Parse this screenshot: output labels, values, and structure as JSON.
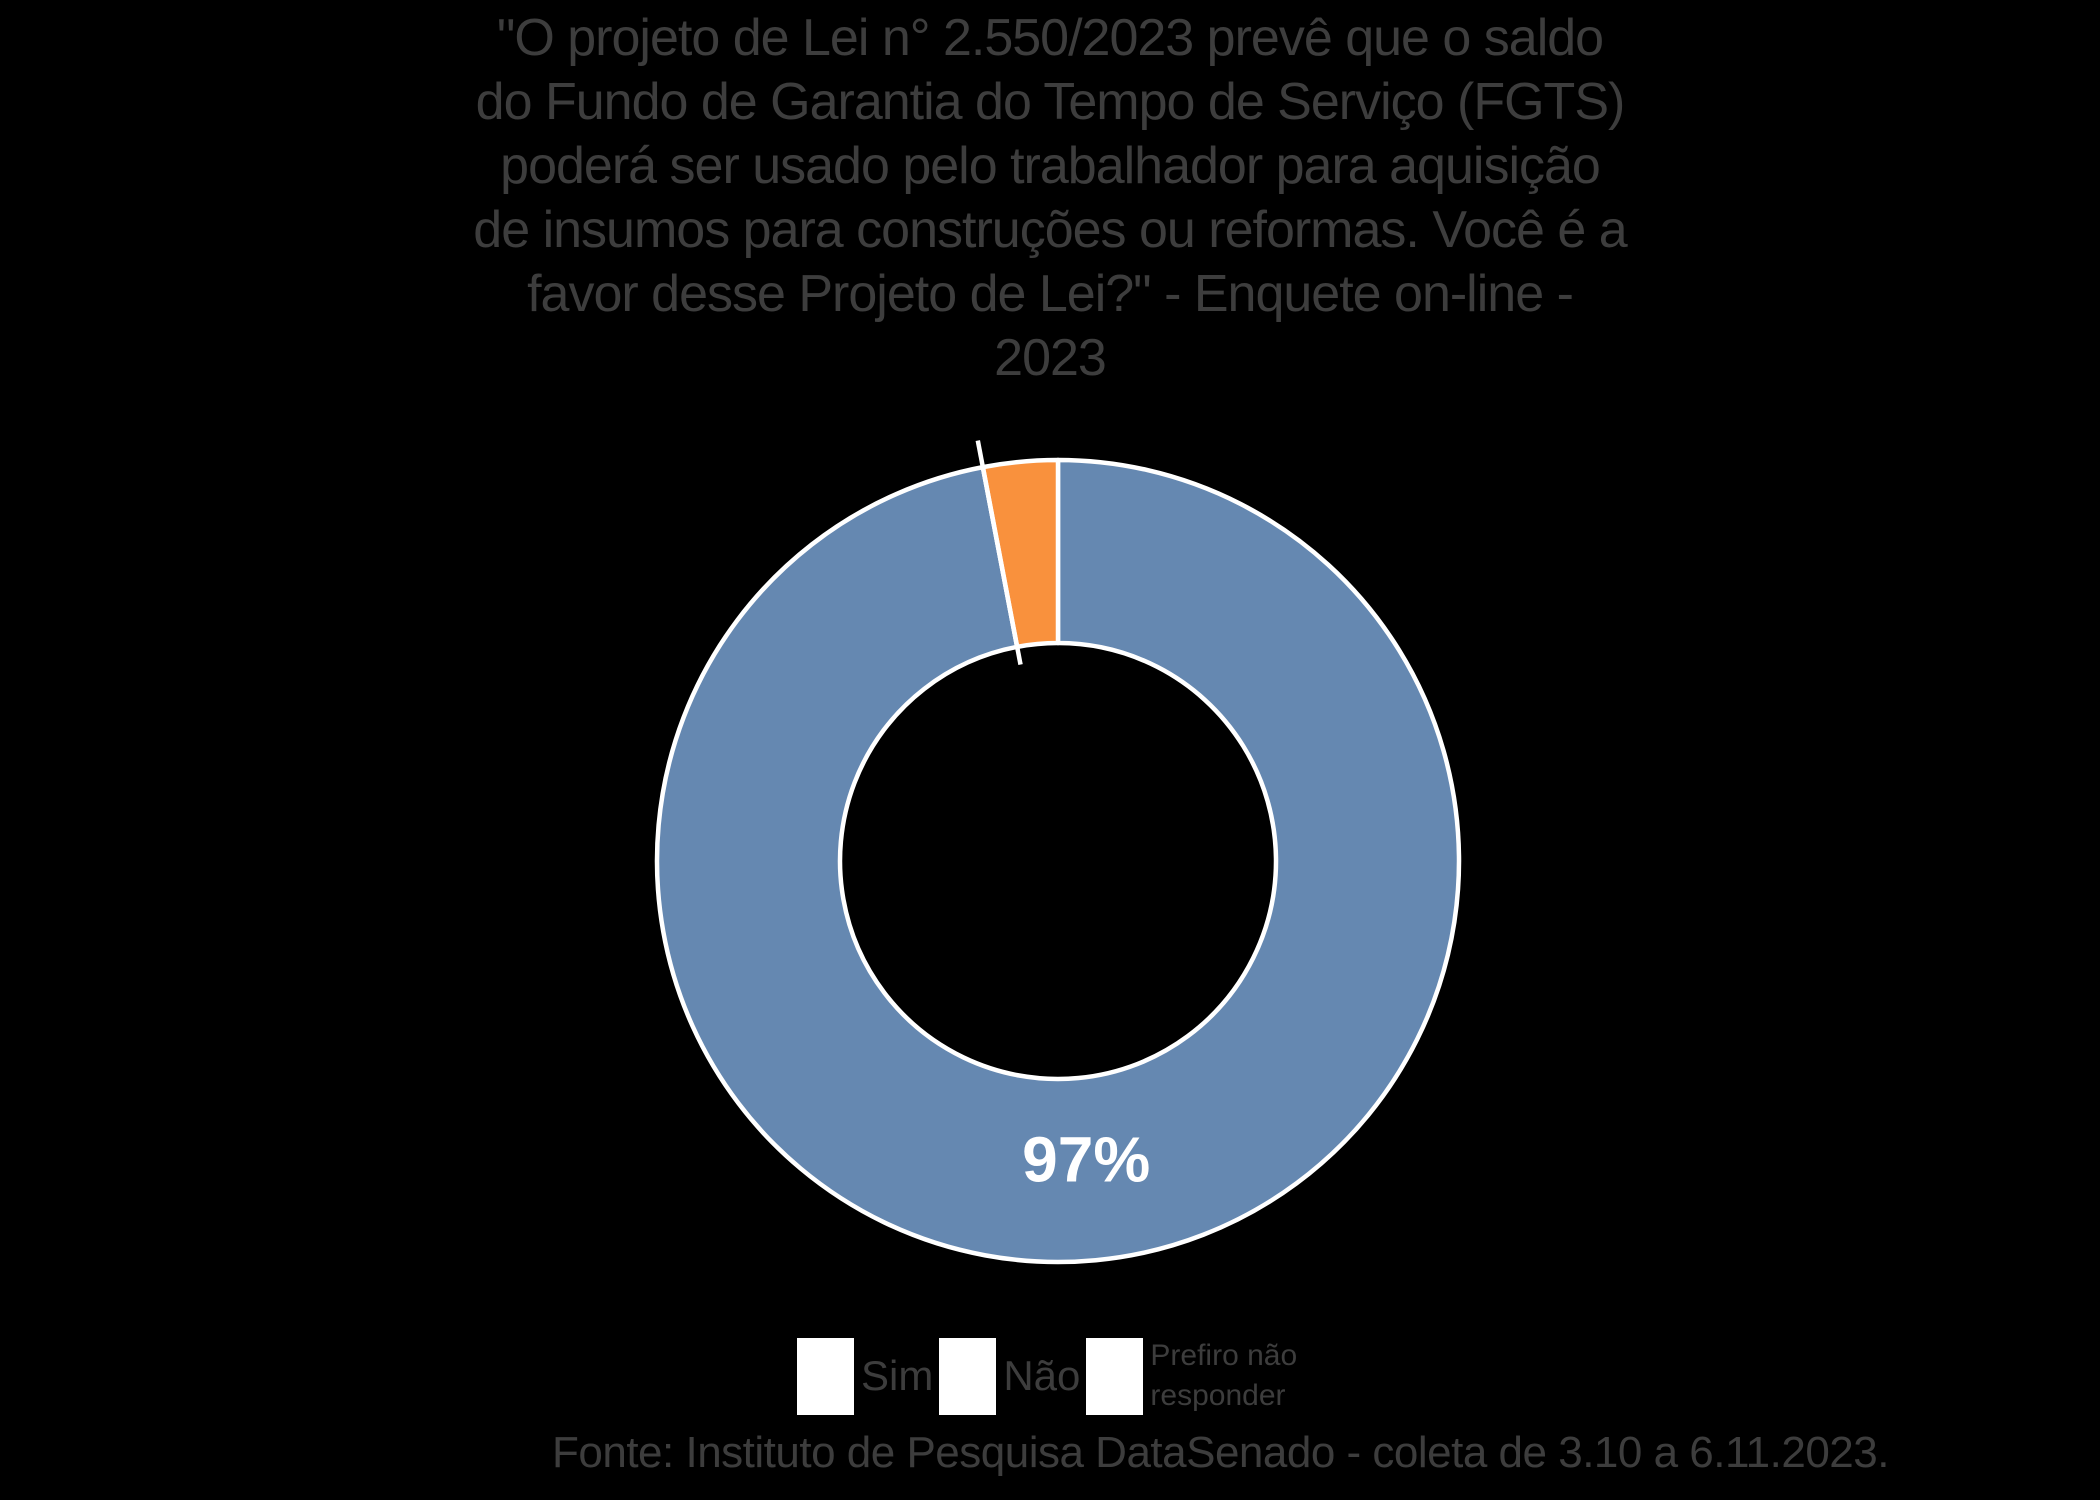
{
  "background": "#000000",
  "text_color": "#3d3d3d",
  "title": {
    "lines": [
      "\"O projeto de Lei n° 2.550/2023 prevê que o saldo",
      "do Fundo de Garantia do Tempo de Serviço (FGTS)",
      "poderá ser usado pelo trabalhador para aquisição",
      "de insumos para construções ou reformas. Você é a",
      "favor desse Projeto de Lei?\" - Enquete on-line -",
      "2023"
    ]
  },
  "chart_data": {
    "type": "pie",
    "subtype": "donut",
    "title": "\"O projeto de Lei n° 2.550/2023 prevê que o saldo do Fundo de Garantia do Tempo de Serviço (FGTS) poderá ser usado pelo trabalhador para aquisição de insumos para construções ou reformas. Você é a favor desse Projeto de Lei?\" - Enquete on-line - 2023",
    "categories": [
      "Sim",
      "Não",
      "Prefiro não responder"
    ],
    "values": [
      97,
      0,
      3
    ],
    "colors": [
      "#6588B1",
      "#477263",
      "#F9913D"
    ],
    "slice_border_color": "#ffffff",
    "data_labels": [
      "97%",
      "",
      ""
    ],
    "data_label_color": "#ffffff",
    "start_angle_deg": 0,
    "direction": "clockwise",
    "legend_position": "bottom"
  },
  "legend": {
    "items": [
      {
        "label": "Sim",
        "color": "#6588B1"
      },
      {
        "label": "Não",
        "color": "#477263"
      },
      {
        "label": "Prefiro não responder",
        "color": "#F9913D"
      }
    ]
  },
  "footer": {
    "text": "Fonte: Instituto de Pesquisa DataSenado - coleta de 3.10 a 6.11.2023."
  }
}
